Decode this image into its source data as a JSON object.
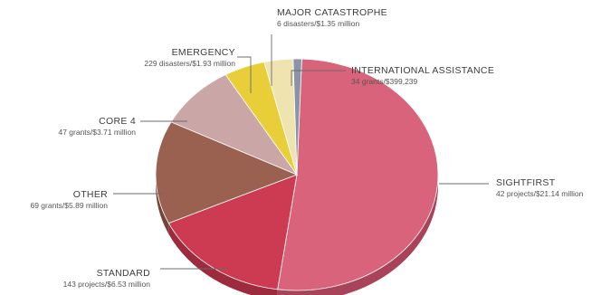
{
  "chart_data": {
    "type": "pie",
    "slices": [
      {
        "name": "SIGHTFIRST",
        "detail": "42 projects/$21.14 million",
        "value": 21.14,
        "color": "#d9637a",
        "side": "#a8435a"
      },
      {
        "name": "STANDARD",
        "detail": "143 projects/$6.53 million",
        "value": 6.53,
        "color": "#cc3b52",
        "side": "#9e2a3e"
      },
      {
        "name": "OTHER",
        "detail": "69 grants/$5.89 million",
        "value": 5.89,
        "color": "#9a6150",
        "side": "#74463a"
      },
      {
        "name": "CORE 4",
        "detail": "47 grants/$3.71 million",
        "value": 3.71,
        "color": "#caa6a6",
        "side": "#9d7e7e"
      },
      {
        "name": "EMERGENCY",
        "detail": "229 disasters/$1.93 million",
        "value": 1.93,
        "color": "#e8cf3a",
        "side": "#b6a02a"
      },
      {
        "name": "MAJOR CATASTROPHE",
        "detail": "6 disasters/$1.35 million",
        "value": 1.35,
        "color": "#efe3b0",
        "side": "#c0b386"
      },
      {
        "name": "INTERNATIONAL ASSISTANCE",
        "detail": "34 grants/$399,239",
        "value": 0.399239,
        "color": "#8a94a6",
        "side": "#666f7e"
      }
    ],
    "legend": "callouts"
  }
}
